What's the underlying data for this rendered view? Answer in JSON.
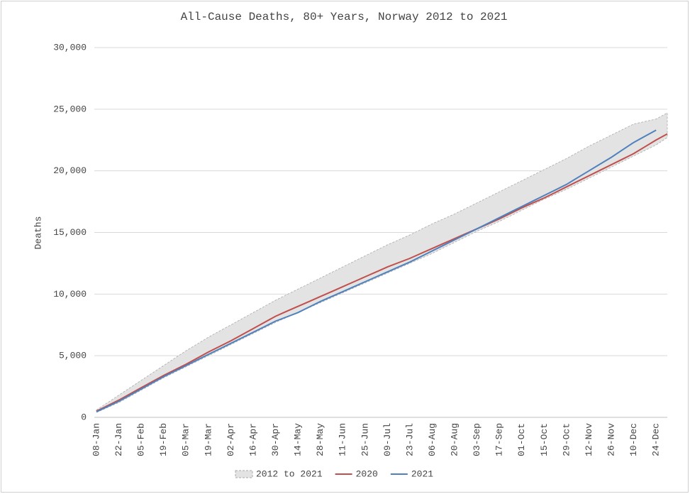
{
  "chart_data": {
    "type": "line",
    "title": "All-Cause Deaths, 80+ Years, Norway 2012 to 2021",
    "y_label": "Deaths",
    "categories": [
      "08-Jan",
      null,
      "22-Jan",
      null,
      "05-Feb",
      null,
      "19-Feb",
      null,
      "05-Mar",
      null,
      "19-Mar",
      null,
      "02-Apr",
      null,
      "16-Apr",
      null,
      "30-Apr",
      null,
      "14-May",
      null,
      "28-May",
      null,
      "11-Jun",
      null,
      "25-Jun",
      null,
      "09-Jul",
      null,
      "23-Jul",
      null,
      "06-Aug",
      null,
      "20-Aug",
      null,
      "03-Sep",
      null,
      "17-Sep",
      null,
      "01-Oct",
      null,
      "15-Oct",
      null,
      "29-Oct",
      null,
      "12-Nov",
      null,
      "26-Nov",
      null,
      "10-Dec",
      null,
      "24-Dec",
      null
    ],
    "series": [
      {
        "name": "2012 to 2021",
        "color": "#e3e3e3",
        "low": [
          400,
          800,
          1200,
          1700,
          2200,
          2700,
          3200,
          3650,
          4100,
          4550,
          5000,
          5450,
          5900,
          6350,
          6800,
          7250,
          7700,
          8100,
          8500,
          8900,
          9300,
          9700,
          10100,
          10500,
          10900,
          11300,
          11700,
          12100,
          12500,
          12900,
          13300,
          13750,
          14200,
          14650,
          15100,
          15500,
          15900,
          16350,
          16800,
          17250,
          17700,
          18100,
          18500,
          18950,
          19400,
          19850,
          20300,
          20750,
          21200,
          21650,
          22100,
          22700
        ],
        "high": [
          600,
          1200,
          1800,
          2400,
          3000,
          3600,
          4200,
          4800,
          5400,
          5950,
          6500,
          7000,
          7500,
          8000,
          8500,
          9000,
          9500,
          9950,
          10400,
          10850,
          11300,
          11750,
          12200,
          12650,
          13100,
          13550,
          14000,
          14400,
          14800,
          15250,
          15700,
          16100,
          16500,
          16950,
          17400,
          17850,
          18300,
          18750,
          19200,
          19650,
          20100,
          20550,
          21000,
          21500,
          22000,
          22450,
          22900,
          23350,
          23800,
          24000,
          24200,
          24700
        ]
      },
      {
        "name": "2020",
        "color": "#c0504d",
        "values": [
          500,
          950,
          1400,
          1900,
          2400,
          2900,
          3400,
          3850,
          4300,
          4800,
          5300,
          5750,
          6200,
          6700,
          7200,
          7700,
          8200,
          8600,
          9000,
          9400,
          9800,
          10200,
          10600,
          11000,
          11400,
          11800,
          12200,
          12550,
          12900,
          13300,
          13700,
          14100,
          14500,
          14900,
          15300,
          15700,
          16100,
          16550,
          17000,
          17400,
          17800,
          18250,
          18700,
          19150,
          19600,
          20050,
          20500,
          20950,
          21400,
          21950,
          22500,
          23000
        ]
      },
      {
        "name": "2021",
        "color": "#4f81bd",
        "values": [
          450,
          875,
          1300,
          1800,
          2300,
          2800,
          3300,
          3750,
          4200,
          4650,
          5100,
          5550,
          6000,
          6450,
          6900,
          7350,
          7800,
          8150,
          8500,
          8950,
          9400,
          9800,
          10200,
          10600,
          11000,
          11400,
          11800,
          12200,
          12600,
          13050,
          13500,
          13950,
          14400,
          14850,
          15300,
          15750,
          16200,
          16650,
          17100,
          17550,
          18000,
          18450,
          18900,
          19450,
          20000,
          20550,
          21100,
          21700,
          22300,
          22800,
          23300,
          null
        ]
      }
    ],
    "ylim": [
      0,
      30000
    ],
    "yticks": [
      0,
      {
        "value": 5000,
        "label": "5,000"
      },
      {
        "value": 10000,
        "label": "10,000"
      },
      {
        "value": 15000,
        "label": "15,000"
      },
      {
        "value": 20000,
        "label": "20,000"
      },
      {
        "value": 25000,
        "label": "25,000"
      },
      {
        "value": 30000,
        "label": "30,000"
      }
    ],
    "grid": true,
    "legend": "bottom"
  }
}
